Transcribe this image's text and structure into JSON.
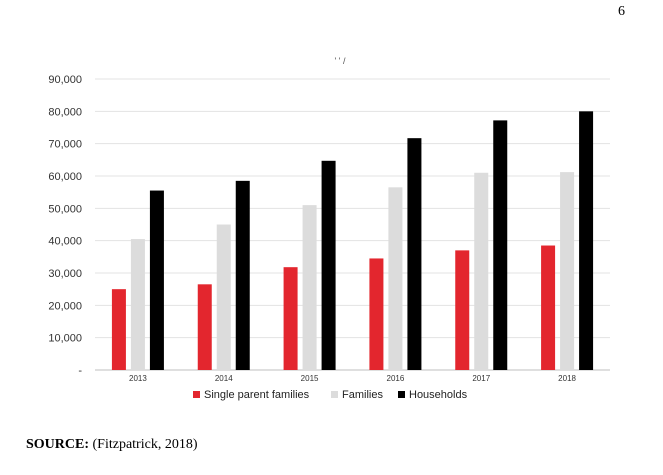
{
  "page_number": "6",
  "source": {
    "label": "SOURCE:",
    "text": "(Fitzpatrick, 2018)"
  },
  "chart_data": {
    "type": "bar",
    "title": "' ' /",
    "categories": [
      "2013",
      "2014",
      "2015",
      "2016",
      "2017",
      "2018"
    ],
    "series": [
      {
        "name": "Single parent families",
        "color": "#e3262e",
        "values": [
          25000,
          26500,
          31800,
          34500,
          37000,
          38500
        ]
      },
      {
        "name": "Families",
        "color": "#dcdcdc",
        "values": [
          40500,
          45000,
          51000,
          56500,
          61000,
          61200
        ]
      },
      {
        "name": "Households",
        "color": "#000000",
        "values": [
          55500,
          58500,
          64700,
          71700,
          77200,
          80000
        ]
      }
    ],
    "ylim": [
      0,
      90000
    ],
    "yticks": [
      0,
      10000,
      20000,
      30000,
      40000,
      50000,
      60000,
      70000,
      80000,
      90000
    ],
    "ytick_labels": [
      "-",
      "10,000",
      "20,000",
      "30,000",
      "40,000",
      "50,000",
      "60,000",
      "70,000",
      "80,000",
      "90,000"
    ],
    "grid": true,
    "legend_position": "bottom"
  }
}
